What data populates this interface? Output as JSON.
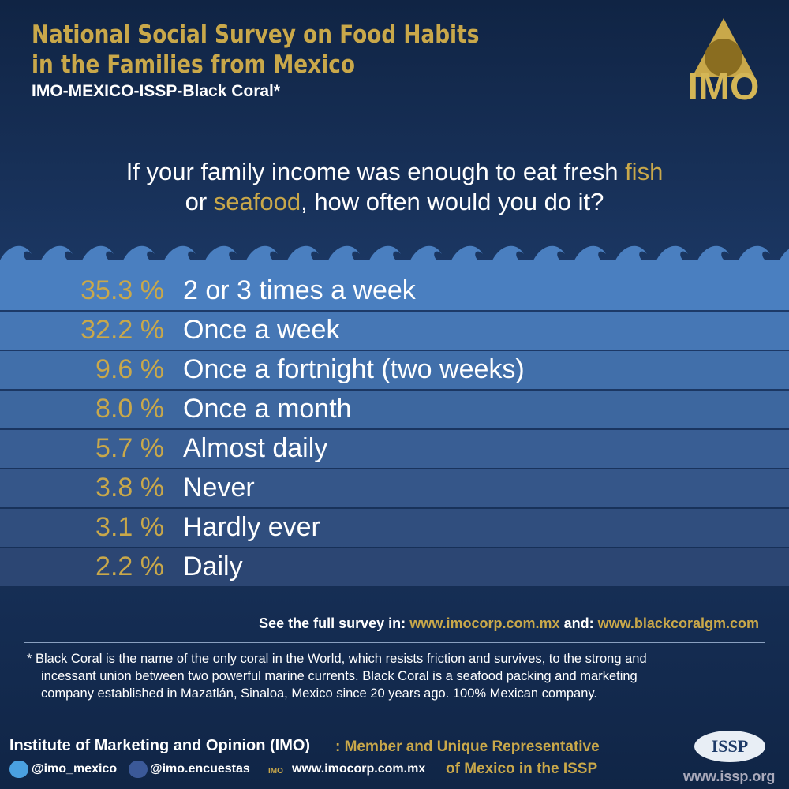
{
  "header": {
    "title_lines": [
      "National Social Survey on Food Habits",
      "in the Families from Mexico"
    ],
    "subtitle": "IMO-MEXICO-ISSP-Black Coral*",
    "logo": "IMO"
  },
  "question": {
    "line1": [
      "If your family income was enough to eat fresh ",
      "fish"
    ],
    "line2": [
      "or ",
      "seafood",
      ", how often would you do it?"
    ]
  },
  "rows": [
    {
      "percent": "35.3 %",
      "label": "2 or 3 times a week"
    },
    {
      "percent": "32.2 %",
      "label": "Once a week"
    },
    {
      "percent": "9.6 %",
      "label": "Once a fortnight (two weeks)"
    },
    {
      "percent": "8.0 %",
      "label": "Once a month"
    },
    {
      "percent": "5.7 %",
      "label": "Almost daily"
    },
    {
      "percent": "3.8 %",
      "label": "Never"
    },
    {
      "percent": "3.1 %",
      "label": "Hardly ever"
    },
    {
      "percent": "2.2 %",
      "label": "Daily"
    }
  ],
  "links": {
    "intro": "See the full survey in:",
    "url1": "www.imocorp.com.mx",
    "and": "and:",
    "url2": "www.blackcoralgm.com"
  },
  "footnote": [
    "* Black Coral is the name of the only coral in the World, which resists friction and survives, to the strong and",
    "incessant union between two powerful marine currents. Black Coral is a seafood packing and marketing",
    "company established in Mazatlán, Sinaloa, Mexico since 20 years ago. 100% Mexican company."
  ],
  "footer": {
    "institute": "Institute of Marketing and Opinion (IMO)",
    "member_line1": ": Member and Unique Representative",
    "member_line2": "of Mexico in the ISSP",
    "twitter": "@imo_mexico",
    "facebook": "@imo.encuestas",
    "web": "www.imocorp.com.mx",
    "small_logo": "IMO",
    "issp_logo": "ISSP",
    "issp_web": "www.issp.org"
  }
}
